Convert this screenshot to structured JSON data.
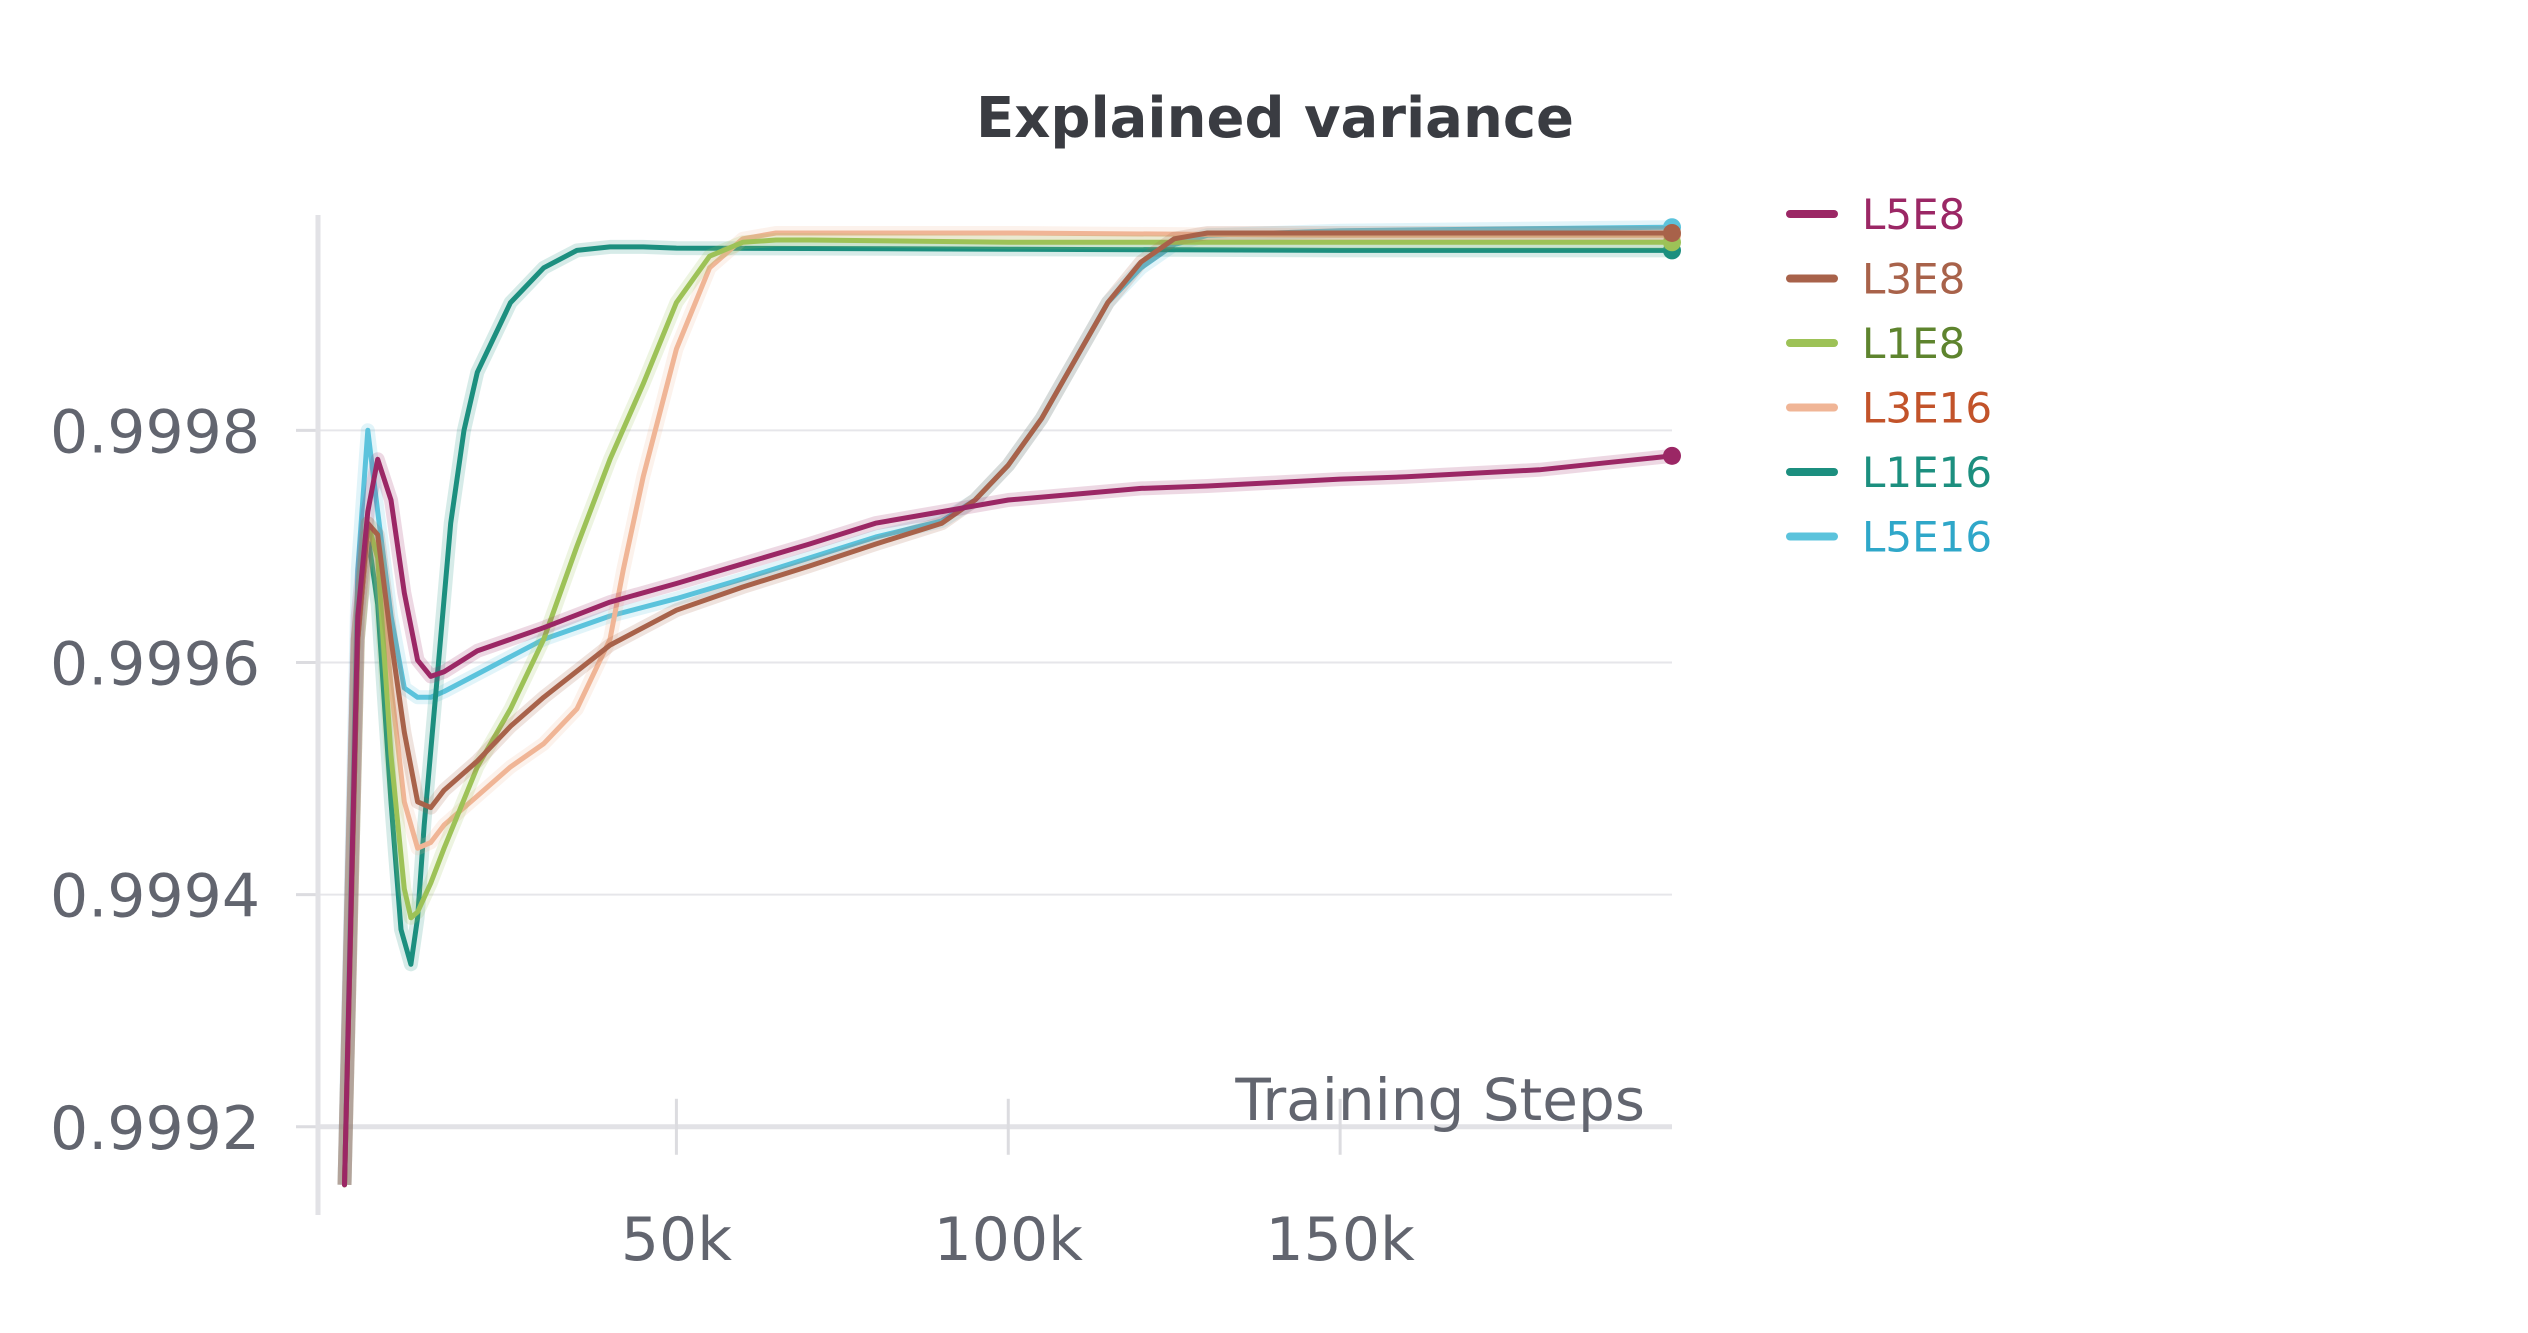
{
  "chart_data": {
    "type": "line",
    "title": "Explained variance",
    "xlabel": "Training Steps",
    "ylabel": "",
    "xlim": [
      -4000,
      200000
    ],
    "ylim": [
      0.99918,
      0.9999855
    ],
    "x_ticks": [
      50000,
      100000,
      150000
    ],
    "x_tick_labels": [
      "50k",
      "100k",
      "150k"
    ],
    "y_ticks": [
      0.9992,
      0.9994,
      0.9996,
      0.9998
    ],
    "y_tick_labels": [
      "0.9992",
      "0.9994",
      "0.9996",
      "0.9998"
    ],
    "grid": true,
    "legend_position": "right",
    "series": [
      {
        "name": "L5E8",
        "line_color": "#9b2765",
        "text_color": "#9b2765",
        "x": [
          0,
          2000,
          3500,
          5000,
          7000,
          9000,
          11000,
          13000,
          15000,
          20000,
          25000,
          30000,
          40000,
          50000,
          60000,
          70000,
          80000,
          90000,
          100000,
          110000,
          120000,
          130000,
          140000,
          150000,
          160000,
          170000,
          180000,
          190000,
          200000
        ],
        "y": [
          0.99915,
          0.99964,
          0.99973,
          0.999775,
          0.99974,
          0.99966,
          0.999602,
          0.999588,
          0.999592,
          0.99961,
          0.99962,
          0.99963,
          0.999652,
          0.999668,
          0.999685,
          0.999702,
          0.99972,
          0.99973,
          0.99974,
          0.999745,
          0.99975,
          0.999752,
          0.999755,
          0.999758,
          0.99976,
          0.999763,
          0.999766,
          0.999772,
          0.999778
        ]
      },
      {
        "name": "L3E8",
        "line_color": "#a8624a",
        "text_color": "#a8624a",
        "x": [
          0,
          2000,
          3500,
          5000,
          7000,
          9000,
          11000,
          13000,
          15000,
          20000,
          25000,
          30000,
          40000,
          50000,
          60000,
          70000,
          80000,
          90000,
          95000,
          100000,
          105000,
          110000,
          115000,
          120000,
          125000,
          130000,
          150000,
          170000,
          200000
        ],
        "y": [
          0.99915,
          0.99962,
          0.99972,
          0.99971,
          0.99962,
          0.99954,
          0.99948,
          0.999475,
          0.99949,
          0.999515,
          0.999545,
          0.99957,
          0.999615,
          0.999645,
          0.999665,
          0.999683,
          0.999702,
          0.99972,
          0.99974,
          0.99977,
          0.99981,
          0.99986,
          0.99991,
          0.999945,
          0.999965,
          0.99997,
          0.99997,
          0.99997,
          0.99997
        ]
      },
      {
        "name": "L1E8",
        "line_color": "#9dc257",
        "text_color": "#5e842e",
        "x": [
          0,
          2000,
          3500,
          5000,
          7000,
          9000,
          10000,
          11000,
          13000,
          15000,
          20000,
          25000,
          30000,
          35000,
          40000,
          45000,
          50000,
          55000,
          60000,
          65000,
          70000,
          100000,
          150000,
          200000
        ],
        "y": [
          0.99915,
          0.99962,
          0.99972,
          0.99969,
          0.99952,
          0.999405,
          0.99938,
          0.999385,
          0.99941,
          0.99944,
          0.99951,
          0.99956,
          0.99962,
          0.9997,
          0.999775,
          0.99984,
          0.99991,
          0.99995,
          0.999962,
          0.999964,
          0.999964,
          0.999962,
          0.999962,
          0.999962
        ]
      },
      {
        "name": "L3E16",
        "line_color": "#f0b596",
        "text_color": "#c2532a",
        "x": [
          0,
          2000,
          3500,
          5000,
          7000,
          9000,
          11000,
          13000,
          15000,
          20000,
          25000,
          30000,
          35000,
          40000,
          42000,
          45000,
          50000,
          55000,
          60000,
          65000,
          70000,
          100000,
          150000,
          200000
        ],
        "y": [
          0.99915,
          0.99962,
          0.99971,
          0.9997,
          0.99958,
          0.99948,
          0.99944,
          0.999445,
          0.99946,
          0.999485,
          0.99951,
          0.99953,
          0.99956,
          0.99962,
          0.99968,
          0.99976,
          0.99987,
          0.99994,
          0.999965,
          0.99997,
          0.99997,
          0.99997,
          0.999968,
          0.999968
        ]
      },
      {
        "name": "L1E16",
        "line_color": "#1c8f7f",
        "text_color": "#1c8f7f",
        "x": [
          0,
          2000,
          3500,
          5000,
          7000,
          8500,
          10000,
          11000,
          12000,
          14000,
          16000,
          18000,
          20000,
          25000,
          30000,
          35000,
          40000,
          45000,
          50000,
          100000,
          150000,
          200000
        ],
        "y": [
          0.99915,
          0.99962,
          0.99971,
          0.99965,
          0.99948,
          0.99937,
          0.99934,
          0.99938,
          0.99946,
          0.99959,
          0.99972,
          0.9998,
          0.99985,
          0.99991,
          0.99994,
          0.999955,
          0.999958,
          0.999958,
          0.999957,
          0.999956,
          0.999955,
          0.999955
        ]
      },
      {
        "name": "L5E16",
        "line_color": "#5bc3dc",
        "text_color": "#2fa7c9",
        "x": [
          0,
          2000,
          3500,
          5000,
          7000,
          9000,
          11000,
          13000,
          15000,
          20000,
          25000,
          30000,
          40000,
          50000,
          60000,
          70000,
          80000,
          90000,
          95000,
          100000,
          105000,
          110000,
          115000,
          120000,
          125000,
          130000,
          150000,
          200000
        ],
        "y": [
          0.99915,
          0.99968,
          0.9998,
          0.99973,
          0.99964,
          0.999578,
          0.99957,
          0.99957,
          0.999575,
          0.99959,
          0.999605,
          0.99962,
          0.99964,
          0.999655,
          0.999672,
          0.99969,
          0.999708,
          0.999722,
          0.99974,
          0.99977,
          0.99981,
          0.99986,
          0.99991,
          0.99994,
          0.99996,
          0.999968,
          0.999972,
          0.999975
        ]
      }
    ]
  }
}
